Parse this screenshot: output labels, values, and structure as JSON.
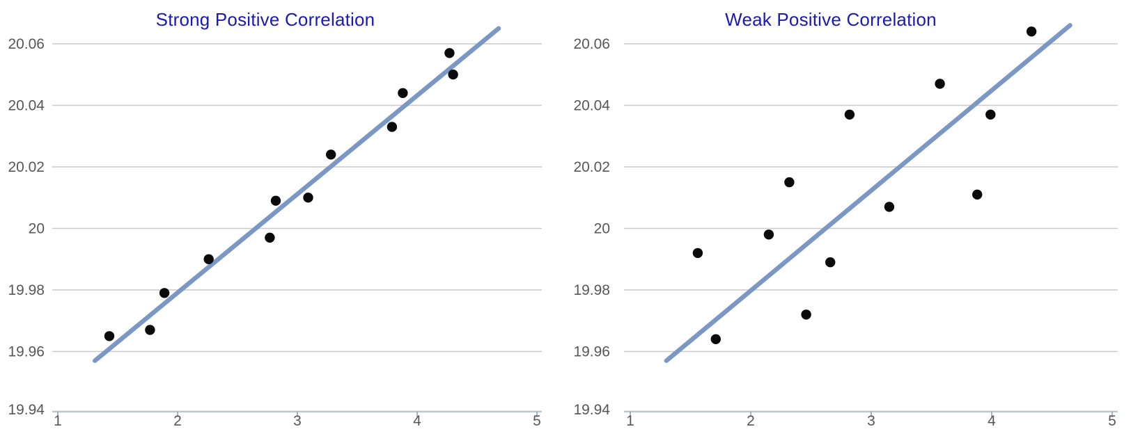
{
  "colors": {
    "background": "#ffffff",
    "title": "#1a1ab8",
    "point": "#0b0b0b",
    "trend_line": "#7b98c4",
    "gridline": "#c9c9c9",
    "axis_line": "#bac7cd",
    "tick_mark": "#93a3ab",
    "tick_label": "#575757"
  },
  "chart_data": [
    {
      "type": "scatter",
      "title": "Strong Positive Correlation",
      "xlabel": "",
      "ylabel": "",
      "xlim": [
        1,
        5
      ],
      "ylim": [
        19.94,
        20.068
      ],
      "grid": "horizontal-only",
      "legend": "none",
      "x_ticks": [
        1,
        2,
        3,
        4,
        5
      ],
      "x_tick_labels": [
        "1",
        "2",
        "3",
        "4",
        "5"
      ],
      "y_ticks": [
        19.94,
        19.96,
        19.98,
        20,
        20.02,
        20.04,
        20.06
      ],
      "y_tick_labels": [
        "19.94",
        "19.96",
        "19.98",
        "20",
        "20.02",
        "20.04",
        "20.06"
      ],
      "points": [
        [
          1.43,
          19.965
        ],
        [
          1.77,
          19.967
        ],
        [
          1.89,
          19.979
        ],
        [
          2.26,
          19.99
        ],
        [
          2.77,
          19.997
        ],
        [
          2.82,
          20.009
        ],
        [
          3.09,
          20.01
        ],
        [
          3.28,
          20.024
        ],
        [
          3.79,
          20.033
        ],
        [
          3.88,
          20.044
        ],
        [
          4.27,
          20.057
        ],
        [
          4.3,
          20.05
        ]
      ],
      "trend_line": {
        "x1": 1.31,
        "y1": 19.957,
        "x2": 4.68,
        "y2": 20.065
      }
    },
    {
      "type": "scatter",
      "title": "Weak Positive Correlation",
      "xlabel": "",
      "ylabel": "",
      "xlim": [
        1,
        5
      ],
      "ylim": [
        19.94,
        20.068
      ],
      "grid": "horizontal-only",
      "legend": "none",
      "x_ticks": [
        1,
        2,
        3,
        4,
        5
      ],
      "x_tick_labels": [
        "1",
        "2",
        "3",
        "4",
        "5"
      ],
      "y_ticks": [
        19.94,
        19.96,
        19.98,
        20,
        20.02,
        20.04,
        20.06
      ],
      "y_tick_labels": [
        "19.94",
        "19.96",
        "19.98",
        "20",
        "20.02",
        "20.04",
        "20.06"
      ],
      "points": [
        [
          1.56,
          19.992
        ],
        [
          1.71,
          19.964
        ],
        [
          2.15,
          19.998
        ],
        [
          2.32,
          20.015
        ],
        [
          2.46,
          19.972
        ],
        [
          2.66,
          19.989
        ],
        [
          2.82,
          20.037
        ],
        [
          3.15,
          20.007
        ],
        [
          3.57,
          20.047
        ],
        [
          3.88,
          20.011
        ],
        [
          3.99,
          20.037
        ],
        [
          4.33,
          20.064
        ]
      ],
      "trend_line": {
        "x1": 1.3,
        "y1": 19.957,
        "x2": 4.65,
        "y2": 20.066
      }
    }
  ]
}
